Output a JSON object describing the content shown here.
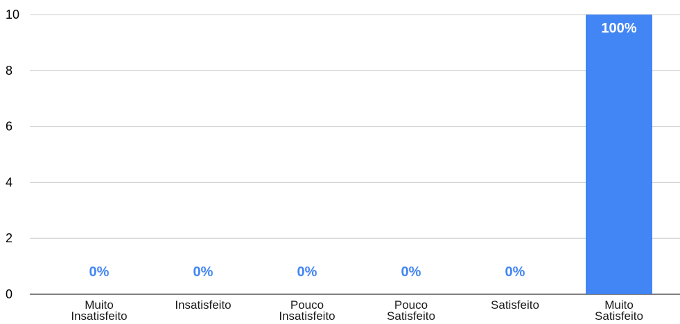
{
  "chart_data": {
    "type": "bar",
    "title": "",
    "xlabel": "",
    "ylabel": "",
    "categories": [
      [
        "Muito",
        "Insatisfeito"
      ],
      [
        "Insatisfeito"
      ],
      [
        "Pouco",
        "Insatisfeito"
      ],
      [
        "Pouco",
        "Satisfeito"
      ],
      [
        "Satisfeito"
      ],
      [
        "Muito",
        "Satisfeito"
      ]
    ],
    "values": [
      0,
      0,
      0,
      0,
      0,
      10
    ],
    "data_labels": [
      "0%",
      "0%",
      "0%",
      "0%",
      "0%",
      "100%"
    ],
    "ylim": [
      0,
      10
    ],
    "yticks": [
      0,
      2,
      4,
      6,
      8,
      10
    ],
    "grid": true,
    "legend": "none",
    "colors": {
      "bar": "#4285F4",
      "label_outside": "#4285F4",
      "label_inside": "#FFFFFF",
      "grid": "#CCCCCC",
      "axis": "#333333"
    }
  }
}
